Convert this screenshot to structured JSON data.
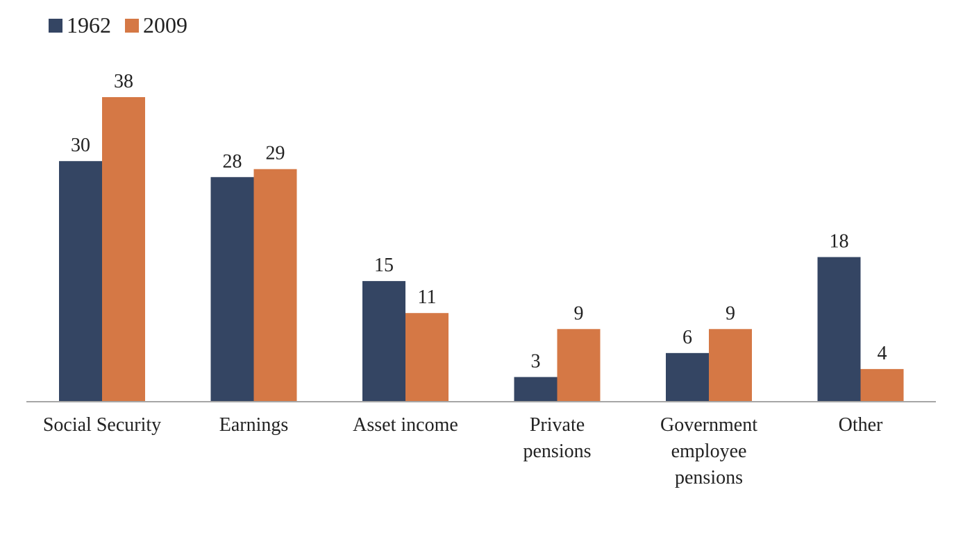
{
  "chart_data": {
    "type": "bar",
    "categories": [
      "Social Security",
      "Earnings",
      "Asset income",
      "Private\npensions",
      "Government\nemployee\npensions",
      "Other"
    ],
    "series": [
      {
        "name": "1962",
        "color": "#344563",
        "values": [
          30,
          28,
          15,
          3,
          6,
          18
        ]
      },
      {
        "name": "2009",
        "color": "#d57845",
        "values": [
          38,
          29,
          11,
          9,
          9,
          4
        ]
      }
    ],
    "data_labels": true,
    "legend_position": "top-left",
    "grid": false,
    "ylim": [
      0,
      40
    ],
    "axis_color": "#a6a6a6"
  }
}
